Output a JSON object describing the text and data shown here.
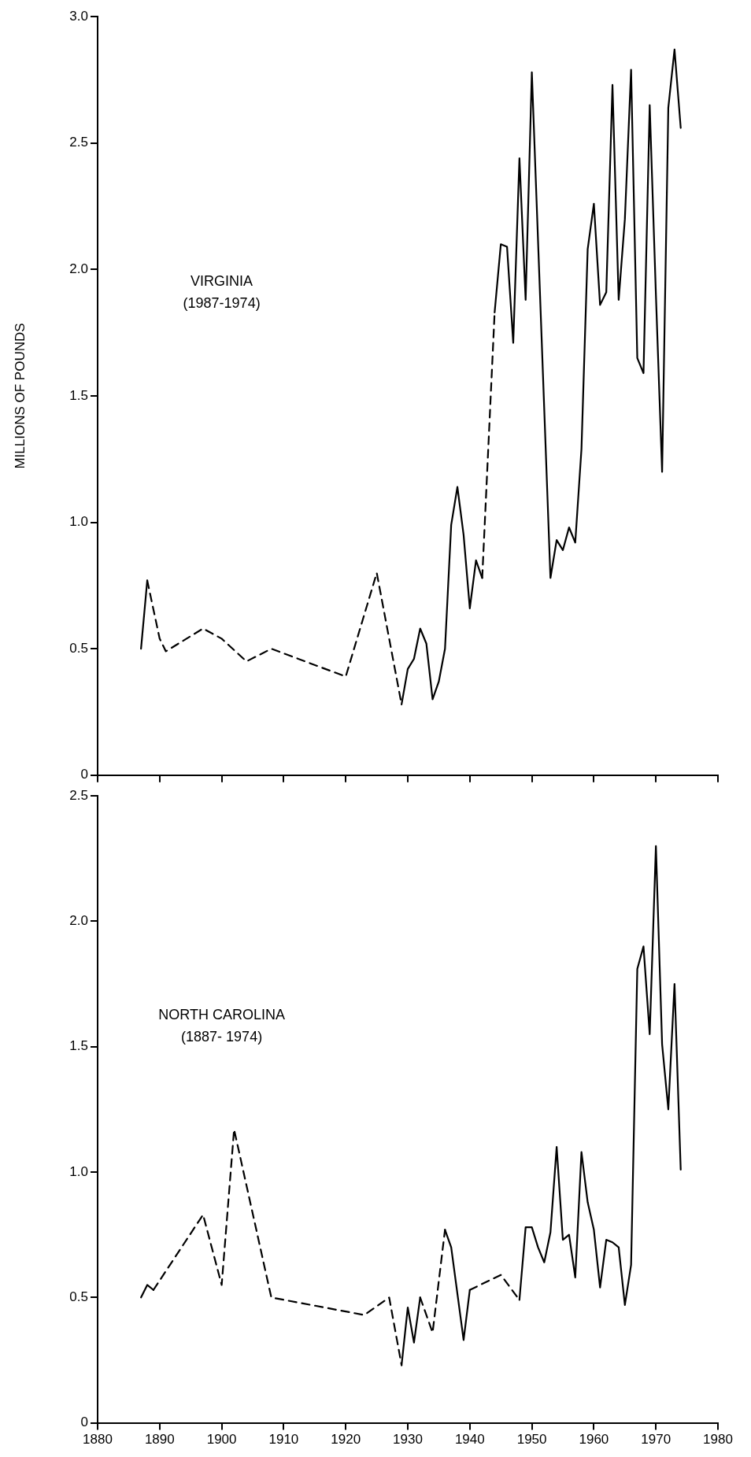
{
  "chart_data": [
    {
      "type": "line",
      "ylabel": "MILLIONS OF POUNDS",
      "annotations": [
        "VIRGINIA",
        "(1987-1974)"
      ],
      "xlim": [
        1880,
        1980
      ],
      "xticks": [
        1880,
        1890,
        1900,
        1910,
        1920,
        1930,
        1940,
        1950,
        1960,
        1970,
        1980
      ],
      "ylim": [
        0,
        3
      ],
      "yticks": [
        0,
        0.5,
        {
          "value": 1,
          "label": "1.0"
        },
        1.5,
        {
          "value": 2,
          "label": "2.0"
        },
        2.5,
        {
          "value": 3,
          "label": "3.0"
        }
      ],
      "tick_labels": "y",
      "marker": "none",
      "series": [
        {
          "color": "#000000",
          "line_style": "solid",
          "x": [
            1887,
            1888
          ],
          "values": [
            0.5,
            0.77
          ]
        },
        {
          "color": "#000000",
          "line_style": "dashed",
          "x": [
            1888,
            1890,
            1891,
            1897,
            1900,
            1904,
            1908,
            1920,
            1925,
            1929
          ],
          "values": [
            0.77,
            0.54,
            0.49,
            0.58,
            0.54,
            0.45,
            0.5,
            0.39,
            0.8,
            0.28
          ]
        },
        {
          "color": "#000000",
          "line_style": "solid",
          "x": [
            1929,
            1930,
            1931,
            1932,
            1933,
            1934,
            1935,
            1936,
            1937,
            1938,
            1939,
            1940,
            1941,
            1942
          ],
          "values": [
            0.28,
            0.42,
            0.46,
            0.58,
            0.52,
            0.3,
            0.37,
            0.5,
            0.99,
            1.14,
            0.95,
            0.66,
            0.85,
            0.78
          ]
        },
        {
          "color": "#000000",
          "line_style": "dashed",
          "x": [
            1942,
            1944
          ],
          "values": [
            0.78,
            1.83
          ]
        },
        {
          "color": "#000000",
          "line_style": "solid",
          "x": [
            1944,
            1945,
            1946,
            1947,
            1948,
            1949,
            1950,
            1953,
            1954,
            1955,
            1956,
            1957,
            1958,
            1959,
            1960,
            1961,
            1962,
            1963,
            1964,
            1965,
            1966,
            1967,
            1968,
            1969,
            1970,
            1971,
            1972,
            1973,
            1974
          ],
          "values": [
            1.83,
            2.1,
            2.09,
            1.71,
            2.44,
            1.88,
            2.78,
            0.78,
            0.93,
            0.89,
            0.98,
            0.92,
            1.29,
            2.08,
            2.26,
            1.86,
            1.91,
            2.73,
            1.88,
            2.2,
            2.79,
            1.65,
            1.59,
            2.65,
            1.9,
            1.2,
            2.64,
            2.87,
            2.56
          ]
        }
      ]
    },
    {
      "type": "line",
      "annotations": [
        "NORTH CAROLINA",
        "(1887- 1974)"
      ],
      "xlim": [
        1880,
        1980
      ],
      "xticks": [
        1880,
        1890,
        1900,
        1910,
        1920,
        1930,
        1940,
        1950,
        1960,
        1970,
        1980
      ],
      "ylim": [
        0,
        2.5
      ],
      "yticks": [
        0,
        0.5,
        {
          "value": 1,
          "label": "1.0"
        },
        1.5,
        {
          "value": 2,
          "label": "2.0"
        },
        2.5
      ],
      "marker": "none",
      "series": [
        {
          "color": "#000000",
          "line_style": "solid",
          "x": [
            1887,
            1888,
            1889
          ],
          "values": [
            0.5,
            0.55,
            0.53
          ]
        },
        {
          "color": "#000000",
          "line_style": "dashed",
          "x": [
            1889,
            1897,
            1900,
            1902,
            1908,
            1923,
            1927,
            1929
          ],
          "values": [
            0.53,
            0.83,
            0.55,
            1.17,
            0.5,
            0.43,
            0.5,
            0.23
          ]
        },
        {
          "color": "#000000",
          "line_style": "solid",
          "x": [
            1929,
            1930,
            1931,
            1932
          ],
          "values": [
            0.23,
            0.46,
            0.32,
            0.5
          ]
        },
        {
          "color": "#000000",
          "line_style": "dashed",
          "x": [
            1932,
            1933,
            1934,
            1936
          ],
          "values": [
            0.5,
            0.43,
            0.36,
            0.77
          ]
        },
        {
          "color": "#000000",
          "line_style": "solid",
          "x": [
            1936,
            1937,
            1939,
            1940
          ],
          "values": [
            0.77,
            0.7,
            0.33,
            0.53
          ]
        },
        {
          "color": "#000000",
          "line_style": "dashed",
          "x": [
            1940,
            1945,
            1948
          ],
          "values": [
            0.53,
            0.59,
            0.49
          ]
        },
        {
          "color": "#000000",
          "line_style": "solid",
          "x": [
            1948,
            1949,
            1950,
            1951,
            1952,
            1953,
            1954,
            1955,
            1956,
            1957,
            1958,
            1959,
            1960,
            1961,
            1962,
            1963,
            1964,
            1965,
            1966,
            1967,
            1968,
            1969,
            1970,
            1971,
            1972,
            1973,
            1974
          ],
          "values": [
            0.49,
            0.78,
            0.78,
            0.7,
            0.64,
            0.76,
            1.1,
            0.73,
            0.75,
            0.58,
            1.08,
            0.88,
            0.77,
            0.54,
            0.73,
            0.72,
            0.7,
            0.47,
            0.63,
            1.81,
            1.9,
            1.55,
            2.3,
            1.51,
            1.25,
            1.75,
            1.01
          ]
        }
      ]
    }
  ]
}
